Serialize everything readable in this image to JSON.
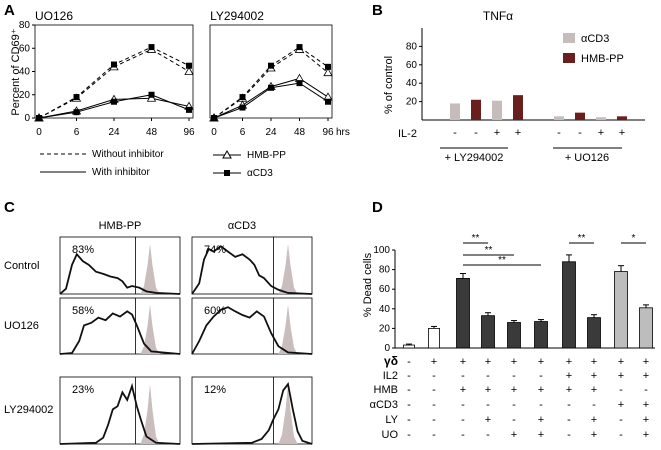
{
  "panel_labels": {
    "a": "A",
    "b": "B",
    "c": "C",
    "d": "D"
  },
  "panel_a": {
    "ylabel": "Percent of CD69⁺",
    "x_ticks": [
      "0",
      "6",
      "24",
      "48",
      "96"
    ],
    "x_unit": "hrs",
    "y_ticks": [
      "0",
      "20",
      "40",
      "60",
      "80"
    ],
    "legend": {
      "without": "Without inhibitor",
      "with": "With inhibitor",
      "hmb": "HMB-PP",
      "acd3": "αCD3"
    }
  },
  "panel_b": {
    "ylabel": "% of control",
    "il2_label": "IL-2"
  },
  "panel_c": {
    "col_titles": [
      "HMB-PP",
      "αCD3"
    ]
  },
  "panel_d": {
    "ylabel": "% Dead cells",
    "row_labels": [
      "γδ",
      "IL2",
      "HMB",
      "αCD3",
      "LY",
      "UO"
    ],
    "signif": [
      "**",
      "**",
      "**",
      "**",
      "*"
    ]
  },
  "chart_data": [
    {
      "type": "line",
      "panel": "A",
      "title": "UO126",
      "x": [
        0,
        6,
        24,
        48,
        96
      ],
      "ylim": [
        0,
        80
      ],
      "series": [
        {
          "name": "HMB-PP without inhibitor",
          "values": [
            0,
            17,
            44,
            59,
            40
          ]
        },
        {
          "name": "αCD3 without inhibitor",
          "values": [
            0,
            18,
            46,
            61,
            45
          ]
        },
        {
          "name": "HMB-PP with inhibitor",
          "values": [
            0,
            6,
            16,
            17,
            10
          ]
        },
        {
          "name": "αCD3 with inhibitor",
          "values": [
            0,
            5,
            14,
            20,
            7
          ]
        }
      ]
    },
    {
      "type": "line",
      "panel": "A",
      "title": "LY294002",
      "x": [
        0,
        6,
        24,
        48,
        96
      ],
      "ylim": [
        0,
        80
      ],
      "series": [
        {
          "name": "HMB-PP without inhibitor",
          "values": [
            0,
            17,
            43,
            59,
            39
          ]
        },
        {
          "name": "αCD3 without inhibitor",
          "values": [
            0,
            18,
            45,
            61,
            44
          ]
        },
        {
          "name": "HMB-PP with inhibitor",
          "values": [
            0,
            11,
            27,
            34,
            18
          ]
        },
        {
          "name": "αCD3 with inhibitor",
          "values": [
            0,
            9,
            26,
            30,
            14
          ]
        }
      ]
    },
    {
      "type": "bar",
      "panel": "B",
      "title": "TNFα",
      "ylabel": "% of control",
      "yticks": [
        20,
        40,
        60,
        80
      ],
      "ylim": [
        0,
        100
      ],
      "groups": [
        "+ LY294002",
        "+ UO126"
      ],
      "il2": [
        "-",
        "-",
        "+",
        "+",
        "-",
        "-",
        "+",
        "+"
      ],
      "series": [
        {
          "name": "αCD3",
          "color": "#c6bcbc",
          "values": [
            18,
            null,
            21,
            null,
            4,
            null,
            3,
            null
          ]
        },
        {
          "name": "HMB-PP",
          "color": "#6a1f1f",
          "values": [
            null,
            22,
            null,
            27,
            null,
            8,
            null,
            4
          ]
        }
      ]
    },
    {
      "type": "histogram-grid",
      "panel": "C",
      "rows": [
        "Control",
        "UO126",
        "LY294002"
      ],
      "columns": [
        "HMB-PP",
        "αCD3"
      ],
      "percentages": [
        [
          "83%",
          "74%"
        ],
        [
          "58%",
          "60%"
        ],
        [
          "23%",
          "12%"
        ]
      ],
      "shaded_peak_fraction": [
        0.75,
        0.8
      ]
    },
    {
      "type": "bar",
      "panel": "D",
      "ylabel": "% Dead cells",
      "ylim": [
        0,
        100
      ],
      "yticks": [
        0,
        20,
        40,
        60,
        80,
        100
      ],
      "values": [
        3,
        20,
        71,
        33,
        26,
        27,
        88,
        31,
        78,
        41
      ],
      "errors": [
        1,
        2,
        5,
        3,
        2,
        2,
        7,
        3,
        6,
        3
      ],
      "fills": [
        "#ffffff",
        "#ffffff",
        "#3a3a3a",
        "#3a3a3a",
        "#3a3a3a",
        "#3a3a3a",
        "#3a3a3a",
        "#3a3a3a",
        "#bdbdbd",
        "#bdbdbd"
      ],
      "conditions": {
        "gd": [
          "-",
          "+",
          "+",
          "+",
          "+",
          "+",
          "+",
          "+",
          "+",
          "+"
        ],
        "IL2": [
          "-",
          "-",
          "-",
          "-",
          "-",
          "-",
          "+",
          "+",
          "+",
          "+"
        ],
        "HMB": [
          "-",
          "-",
          "+",
          "+",
          "+",
          "+",
          "+",
          "+",
          "-",
          "-"
        ],
        "aCD3": [
          "-",
          "-",
          "-",
          "-",
          "-",
          "-",
          "-",
          "-",
          "+",
          "+"
        ],
        "LY": [
          "-",
          "-",
          "-",
          "+",
          "-",
          "+",
          "-",
          "+",
          "-",
          "+"
        ],
        "UO": [
          "-",
          "-",
          "-",
          "-",
          "+",
          "+",
          "-",
          "+",
          "-",
          "+"
        ]
      },
      "significance": [
        {
          "from": 2,
          "to": 3,
          "label": "**"
        },
        {
          "from": 2,
          "to": 4,
          "label": "**"
        },
        {
          "from": 2,
          "to": 5,
          "label": "**"
        },
        {
          "from": 6,
          "to": 7,
          "label": "**"
        },
        {
          "from": 8,
          "to": 9,
          "label": "*"
        }
      ]
    }
  ]
}
